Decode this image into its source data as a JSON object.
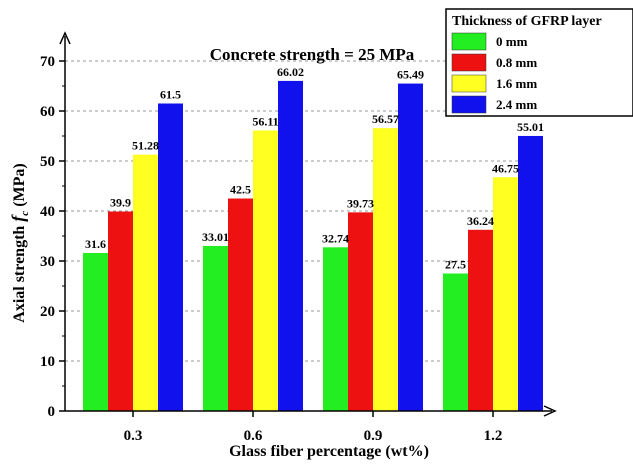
{
  "chart_data": {
    "type": "bar",
    "title": "Concrete strength = 25 MPa",
    "xlabel": "Glass fiber percentage (wt%)",
    "ylabel_main": "Axial strength ",
    "ylabel_var": "f",
    "ylabel_sub": "c",
    "ylabel_unit": " (MPa)",
    "categories": [
      "0.3",
      "0.6",
      "0.9",
      "1.2"
    ],
    "ylim": [
      0,
      70
    ],
    "yticks": [
      0,
      10,
      20,
      30,
      40,
      50,
      60,
      70
    ],
    "grid": "horizontal-dashed",
    "legend_title": "Thickness of GFRP layer",
    "legend_position": "top-right",
    "series": [
      {
        "name": "0 mm",
        "color": "#22ee22",
        "values": [
          31.6,
          33.01,
          32.74,
          27.5
        ],
        "labels": [
          "31.6",
          "33.01",
          "32.74",
          "27.5"
        ]
      },
      {
        "name": "0.8 mm",
        "color": "#ee1111",
        "values": [
          39.9,
          42.5,
          39.73,
          36.24
        ],
        "labels": [
          "39.9",
          "42.5",
          "39.73",
          "36.24"
        ]
      },
      {
        "name": "1.6 mm",
        "color": "#ffff22",
        "values": [
          51.28,
          56.11,
          56.57,
          46.75
        ],
        "labels": [
          "51.28",
          "56.11",
          "56.57",
          "46.75"
        ]
      },
      {
        "name": "2.4 mm",
        "color": "#1111ee",
        "values": [
          61.5,
          66.02,
          65.49,
          55.01
        ],
        "labels": [
          "61.5",
          "66.02",
          "65.49",
          "55.01"
        ]
      }
    ]
  }
}
